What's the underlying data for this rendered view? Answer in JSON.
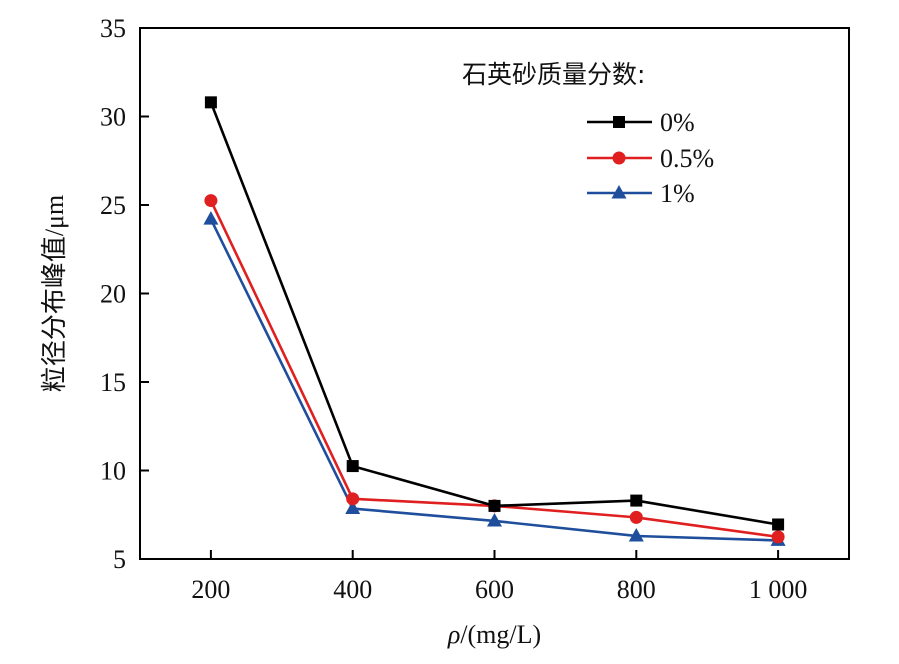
{
  "chart_data": {
    "type": "line",
    "x": [
      200,
      400,
      600,
      800,
      1000
    ],
    "x_tick_labels": [
      "200",
      "400",
      "600",
      "800",
      "1 000"
    ],
    "xlabel_var": "ρ",
    "xlabel_unit": "/(mg/L)",
    "ylabel": "粒径分布峰值/μm",
    "ylim": [
      5,
      35
    ],
    "y_ticks": [
      5,
      10,
      15,
      20,
      25,
      30,
      35
    ],
    "y_tick_labels": [
      "5",
      "10",
      "15",
      "20",
      "25",
      "30",
      "35"
    ],
    "grid": false,
    "legend": {
      "title": "石英砂质量分数:",
      "position": "top-right"
    },
    "series": [
      {
        "name": "0%",
        "color": "#000000",
        "marker": "square",
        "values": [
          30.8,
          10.25,
          8.0,
          8.3,
          6.95
        ]
      },
      {
        "name": "0.5%",
        "color": "#e02020",
        "marker": "circle",
        "values": [
          25.25,
          8.4,
          8.0,
          7.35,
          6.25
        ]
      },
      {
        "name": "1%",
        "color": "#1f4e9c",
        "marker": "triangle",
        "values": [
          24.2,
          7.85,
          7.15,
          6.3,
          6.05
        ]
      }
    ]
  }
}
